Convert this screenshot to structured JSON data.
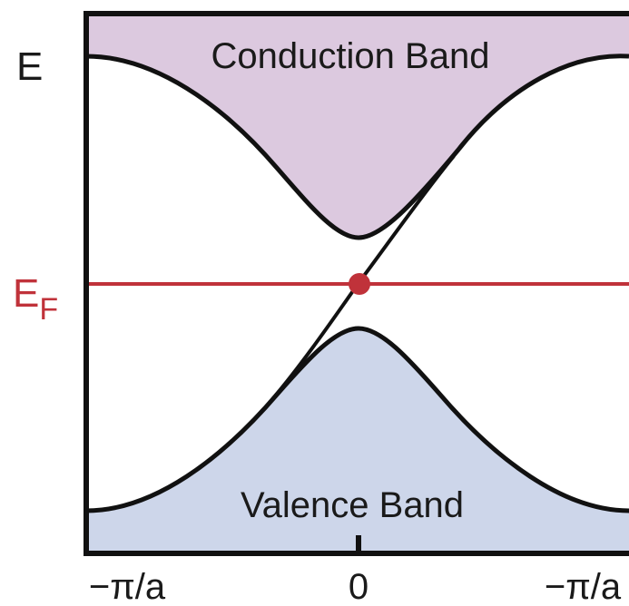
{
  "energy_label": "E",
  "fermi_label": {
    "main": "E",
    "sub": "F"
  },
  "conduction_band_label": "Conduction Band",
  "valence_band_label": "Valence Band",
  "x_ticks": [
    "−π/a",
    "0",
    "−π/a"
  ],
  "colors": {
    "conduction_fill": "#dcc9df",
    "valence_fill": "#cdd6ea",
    "fermi_line": "#c0323a",
    "curve": "#111111"
  }
}
